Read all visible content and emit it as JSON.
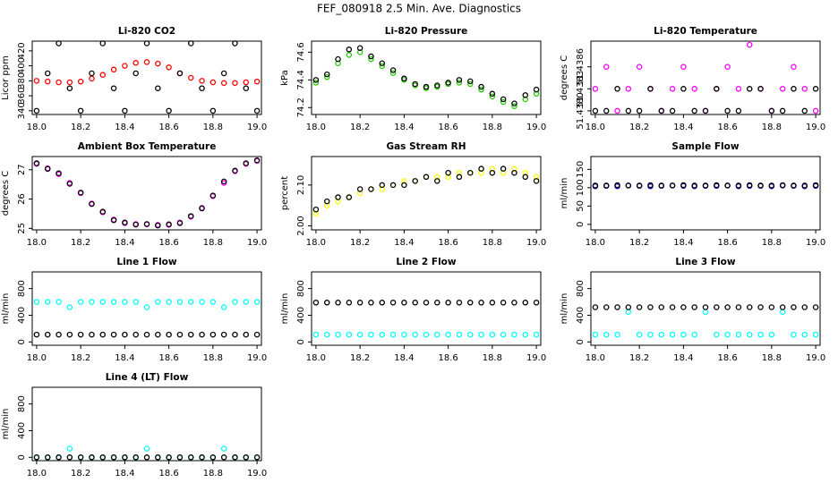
{
  "title": "FEF_080918  2.5 Min. Ave. Diagnostics",
  "chart_data": [
    {
      "type": "scatter",
      "title": "Li-820 CO2",
      "y_label": "Licor ppm",
      "x": [
        18,
        18.05,
        18.1,
        18.15,
        18.2,
        18.25,
        18.3,
        18.35,
        18.4,
        18.45,
        18.5,
        18.55,
        18.6,
        18.65,
        18.7,
        18.75,
        18.8,
        18.85,
        18.9,
        18.95,
        19
      ],
      "series": [
        {
          "color": "#ff0000",
          "values": [
            380,
            379,
            378,
            378,
            379,
            383,
            388,
            395,
            400,
            404,
            405,
            403,
            398,
            390,
            384,
            380,
            378,
            377,
            377,
            378,
            379
          ]
        },
        {
          "color": "#000000",
          "values": [
            340,
            390,
            430,
            370,
            340,
            390,
            430,
            370,
            340,
            390,
            430,
            370,
            340,
            390,
            430,
            370,
            340,
            390,
            430,
            370,
            340
          ]
        }
      ],
      "xlim": [
        17.98,
        19.02
      ],
      "xticks": [
        {
          "value": 18,
          "label": "18.0"
        },
        18.2,
        18.4,
        18.6,
        18.8,
        {
          "value": 19,
          "label": "19.0"
        }
      ],
      "ylim": [
        335,
        433
      ],
      "yticks": [
        340,
        360,
        380,
        400,
        420
      ]
    },
    {
      "type": "scatter",
      "title": "Li-820 Pressure",
      "y_label": "kPa",
      "x": [
        18,
        18.05,
        18.1,
        18.15,
        18.2,
        18.25,
        18.3,
        18.35,
        18.4,
        18.45,
        18.5,
        18.55,
        18.6,
        18.65,
        18.7,
        18.75,
        18.8,
        18.85,
        18.9,
        18.95,
        19
      ],
      "series": [
        {
          "color": "#22cc00",
          "values": [
            74.38,
            74.42,
            74.52,
            74.58,
            74.6,
            74.55,
            74.5,
            74.45,
            74.4,
            74.36,
            74.34,
            74.35,
            74.37,
            74.38,
            74.37,
            74.33,
            74.28,
            74.24,
            74.21,
            74.26,
            74.3
          ]
        },
        {
          "color": "#000000",
          "values": [
            74.4,
            74.44,
            74.55,
            74.62,
            74.63,
            74.57,
            74.52,
            74.47,
            74.41,
            74.37,
            74.35,
            74.36,
            74.38,
            74.4,
            74.39,
            74.35,
            74.3,
            74.26,
            74.23,
            74.29,
            74.33
          ]
        }
      ],
      "xlim": [
        17.98,
        19.02
      ],
      "xticks": [
        {
          "value": 18,
          "label": "18.0"
        },
        18.2,
        18.4,
        18.6,
        18.8,
        {
          "value": 19,
          "label": "19.0"
        }
      ],
      "ylim": [
        74.15,
        74.68
      ],
      "yticks": [
        74.2,
        74.4,
        74.6
      ]
    },
    {
      "type": "scatter",
      "title": "Li-820 Temperature",
      "y_label": "degrees C",
      "x": [
        18,
        18.05,
        18.1,
        18.15,
        18.2,
        18.25,
        18.3,
        18.35,
        18.4,
        18.45,
        18.5,
        18.55,
        18.6,
        18.65,
        18.7,
        18.75,
        18.8,
        18.85,
        18.9,
        18.95,
        19
      ],
      "series": [
        {
          "color": "#ff00ff",
          "values": [
            51.4383,
            51.4386,
            51.438,
            51.4383,
            51.4386,
            51.4383,
            51.438,
            51.4383,
            51.4386,
            51.4383,
            51.438,
            51.4383,
            51.4386,
            51.4383,
            51.4389,
            51.4383,
            51.438,
            51.4383,
            51.4386,
            51.4383,
            51.438
          ]
        },
        {
          "color": "#000000",
          "values": [
            51.438,
            51.438,
            51.4383,
            51.438,
            51.438,
            51.4383,
            51.438,
            51.438,
            51.4383,
            51.438,
            51.438,
            51.4383,
            51.438,
            51.438,
            51.4383,
            51.4383,
            51.438,
            51.438,
            51.4383,
            51.438,
            51.4383
          ]
        }
      ],
      "xlim": [
        17.98,
        19.02
      ],
      "xticks": [
        {
          "value": 18,
          "label": "18.0"
        },
        18.2,
        18.4,
        18.6,
        18.8,
        {
          "value": 19,
          "label": "19.0"
        }
      ],
      "ylim": [
        51.43795,
        51.43895
      ],
      "yticks": [
        {
          "value": 51.438,
          "label": "51.4380"
        },
        51.4383,
        51.4386
      ]
    },
    {
      "type": "scatter",
      "title": "Ambient Box Temperature",
      "y_label": "degrees C",
      "x": [
        18,
        18.05,
        18.1,
        18.15,
        18.2,
        18.25,
        18.3,
        18.35,
        18.4,
        18.45,
        18.5,
        18.55,
        18.6,
        18.65,
        18.7,
        18.75,
        18.8,
        18.85,
        18.9,
        18.95,
        19
      ],
      "series": [
        {
          "color": "#ff00ff",
          "values": [
            27.2,
            27.05,
            26.85,
            26.55,
            26.2,
            25.85,
            25.55,
            25.3,
            25.18,
            25.15,
            25.14,
            25.12,
            25.12,
            25.2,
            25.4,
            25.7,
            26.1,
            26.55,
            26.95,
            27.2,
            27.3
          ]
        },
        {
          "color": "#000000",
          "values": [
            27.22,
            27.03,
            26.88,
            26.52,
            26.22,
            25.83,
            25.57,
            25.28,
            25.2,
            25.13,
            25.15,
            25.1,
            25.14,
            25.18,
            25.42,
            25.68,
            26.12,
            26.6,
            26.97,
            27.22,
            27.32
          ]
        }
      ],
      "xlim": [
        17.98,
        19.02
      ],
      "xticks": [
        {
          "value": 18,
          "label": "18.0"
        },
        18.2,
        18.4,
        18.6,
        18.8,
        {
          "value": 19,
          "label": "19.0"
        }
      ],
      "ylim": [
        24.95,
        27.45
      ],
      "yticks": [
        25,
        26,
        27
      ]
    },
    {
      "type": "scatter",
      "title": "Gas Stream RH",
      "y_label": "percent",
      "x": [
        18,
        18.05,
        18.1,
        18.15,
        18.2,
        18.25,
        18.3,
        18.35,
        18.4,
        18.45,
        18.5,
        18.55,
        18.6,
        18.65,
        18.7,
        18.75,
        18.8,
        18.85,
        18.9,
        18.95,
        19
      ],
      "series": [
        {
          "color": "#ffff00",
          "values": [
            2.03,
            2.05,
            2.06,
            2.07,
            2.08,
            2.09,
            2.09,
            2.1,
            2.11,
            2.11,
            2.12,
            2.12,
            2.12,
            2.13,
            2.13,
            2.13,
            2.14,
            2.13,
            2.14,
            2.13,
            2.12
          ]
        },
        {
          "color": "#000000",
          "values": [
            2.04,
            2.06,
            2.07,
            2.07,
            2.09,
            2.09,
            2.1,
            2.1,
            2.1,
            2.11,
            2.12,
            2.11,
            2.13,
            2.12,
            2.13,
            2.14,
            2.13,
            2.14,
            2.13,
            2.12,
            2.11
          ]
        }
      ],
      "xlim": [
        17.98,
        19.02
      ],
      "xticks": [
        {
          "value": 18,
          "label": "18.0"
        },
        18.2,
        18.4,
        18.6,
        18.8,
        {
          "value": 19,
          "label": "19.0"
        }
      ],
      "ylim": [
        1.99,
        2.17
      ],
      "yticks": [
        {
          "value": 2,
          "label": "2.00"
        },
        {
          "value": 2.1,
          "label": "2.10"
        }
      ]
    },
    {
      "type": "scatter",
      "title": "Sample Flow",
      "y_label": "ml/min",
      "x": [
        18,
        18.05,
        18.1,
        18.15,
        18.2,
        18.25,
        18.3,
        18.35,
        18.4,
        18.45,
        18.5,
        18.55,
        18.6,
        18.65,
        18.7,
        18.75,
        18.8,
        18.85,
        18.9,
        18.95,
        19
      ],
      "series": [
        {
          "color": "#0000cc",
          "values": [
            104,
            105,
            104,
            106,
            105,
            104,
            105,
            106,
            105,
            104,
            105,
            105,
            106,
            104,
            105,
            105,
            104,
            106,
            105,
            104,
            105
          ]
        },
        {
          "color": "#000000",
          "values": [
            106,
            106,
            107,
            106,
            106,
            107,
            106,
            106,
            107,
            106,
            106,
            107,
            106,
            106,
            107,
            106,
            106,
            107,
            106,
            106,
            107
          ]
        }
      ],
      "xlim": [
        17.98,
        19.02
      ],
      "xticks": [
        {
          "value": 18,
          "label": "18.0"
        },
        18.2,
        18.4,
        18.6,
        18.8,
        {
          "value": 19,
          "label": "19.0"
        }
      ],
      "ylim": [
        -15,
        185
      ],
      "yticks": [
        0,
        50,
        100,
        150
      ]
    },
    {
      "type": "scatter",
      "title": "Line 1 Flow",
      "y_label": "ml/min",
      "x": [
        18,
        18.05,
        18.1,
        18.15,
        18.2,
        18.25,
        18.3,
        18.35,
        18.4,
        18.45,
        18.5,
        18.55,
        18.6,
        18.65,
        18.7,
        18.75,
        18.8,
        18.85,
        18.9,
        18.95,
        19
      ],
      "series": [
        {
          "color": "#00ffff",
          "values": [
            600,
            600,
            600,
            520,
            600,
            600,
            600,
            600,
            600,
            600,
            520,
            600,
            600,
            600,
            600,
            600,
            600,
            520,
            600,
            600,
            600
          ]
        },
        {
          "color": "#000000",
          "values": [
            110,
            110,
            110,
            110,
            110,
            110,
            110,
            110,
            110,
            110,
            110,
            110,
            110,
            110,
            110,
            110,
            110,
            110,
            110,
            110,
            110
          ]
        }
      ],
      "xlim": [
        17.98,
        19.02
      ],
      "xticks": [
        {
          "value": 18,
          "label": "18.0"
        },
        18.2,
        18.4,
        18.6,
        18.8,
        {
          "value": 19,
          "label": "19.0"
        }
      ],
      "ylim": [
        -50,
        1050
      ],
      "yticks": [
        0,
        400,
        800
      ]
    },
    {
      "type": "scatter",
      "title": "Line 2 Flow",
      "y_label": "ml/min",
      "x": [
        18,
        18.05,
        18.1,
        18.15,
        18.2,
        18.25,
        18.3,
        18.35,
        18.4,
        18.45,
        18.5,
        18.55,
        18.6,
        18.65,
        18.7,
        18.75,
        18.8,
        18.85,
        18.9,
        18.95,
        19
      ],
      "series": [
        {
          "color": "#00ffff",
          "values": [
            110,
            110,
            110,
            110,
            110,
            110,
            110,
            110,
            110,
            110,
            110,
            110,
            110,
            110,
            110,
            110,
            110,
            110,
            110,
            110,
            110
          ]
        },
        {
          "color": "#000000",
          "values": [
            590,
            590,
            590,
            590,
            590,
            590,
            590,
            590,
            590,
            590,
            590,
            590,
            590,
            590,
            590,
            590,
            590,
            590,
            590,
            590,
            590
          ]
        }
      ],
      "xlim": [
        17.98,
        19.02
      ],
      "xticks": [
        {
          "value": 18,
          "label": "18.0"
        },
        18.2,
        18.4,
        18.6,
        18.8,
        {
          "value": 19,
          "label": "19.0"
        }
      ],
      "ylim": [
        -50,
        1050
      ],
      "yticks": [
        0,
        400,
        800
      ]
    },
    {
      "type": "scatter",
      "title": "Line 3 Flow",
      "y_label": "ml/min",
      "x": [
        18,
        18.05,
        18.1,
        18.15,
        18.2,
        18.25,
        18.3,
        18.35,
        18.4,
        18.45,
        18.5,
        18.55,
        18.6,
        18.65,
        18.7,
        18.75,
        18.8,
        18.85,
        18.9,
        18.95,
        19
      ],
      "series": [
        {
          "color": "#00ffff",
          "values": [
            110,
            110,
            110,
            450,
            110,
            110,
            110,
            110,
            110,
            110,
            450,
            110,
            110,
            110,
            110,
            110,
            110,
            450,
            110,
            110,
            110
          ]
        },
        {
          "color": "#000000",
          "values": [
            520,
            520,
            520,
            520,
            520,
            520,
            520,
            520,
            520,
            520,
            520,
            520,
            520,
            520,
            520,
            520,
            520,
            520,
            520,
            520,
            520
          ]
        }
      ],
      "xlim": [
        17.98,
        19.02
      ],
      "xticks": [
        {
          "value": 18,
          "label": "18.0"
        },
        18.2,
        18.4,
        18.6,
        18.8,
        {
          "value": 19,
          "label": "19.0"
        }
      ],
      "ylim": [
        -50,
        1050
      ],
      "yticks": [
        0,
        400,
        800
      ]
    },
    {
      "type": "scatter",
      "title": "Line 4 (LT) Flow",
      "y_label": "ml/min",
      "x": [
        18,
        18.05,
        18.1,
        18.15,
        18.2,
        18.25,
        18.3,
        18.35,
        18.4,
        18.45,
        18.5,
        18.55,
        18.6,
        18.65,
        18.7,
        18.75,
        18.8,
        18.85,
        18.9,
        18.95,
        19
      ],
      "series": [
        {
          "color": "#00ffff",
          "values": [
            0,
            0,
            0,
            130,
            0,
            0,
            0,
            0,
            0,
            0,
            130,
            0,
            0,
            0,
            0,
            0,
            0,
            130,
            0,
            0,
            0
          ]
        },
        {
          "color": "#000000",
          "values": [
            0,
            0,
            0,
            0,
            0,
            0,
            0,
            0,
            0,
            0,
            0,
            0,
            0,
            0,
            0,
            0,
            0,
            0,
            0,
            0,
            0
          ]
        }
      ],
      "xlim": [
        17.98,
        19.02
      ],
      "xticks": [
        {
          "value": 18,
          "label": "18.0"
        },
        18.2,
        18.4,
        18.6,
        18.8,
        {
          "value": 19,
          "label": "19.0"
        }
      ],
      "ylim": [
        -50,
        1050
      ],
      "yticks": [
        0,
        400,
        800
      ]
    }
  ]
}
